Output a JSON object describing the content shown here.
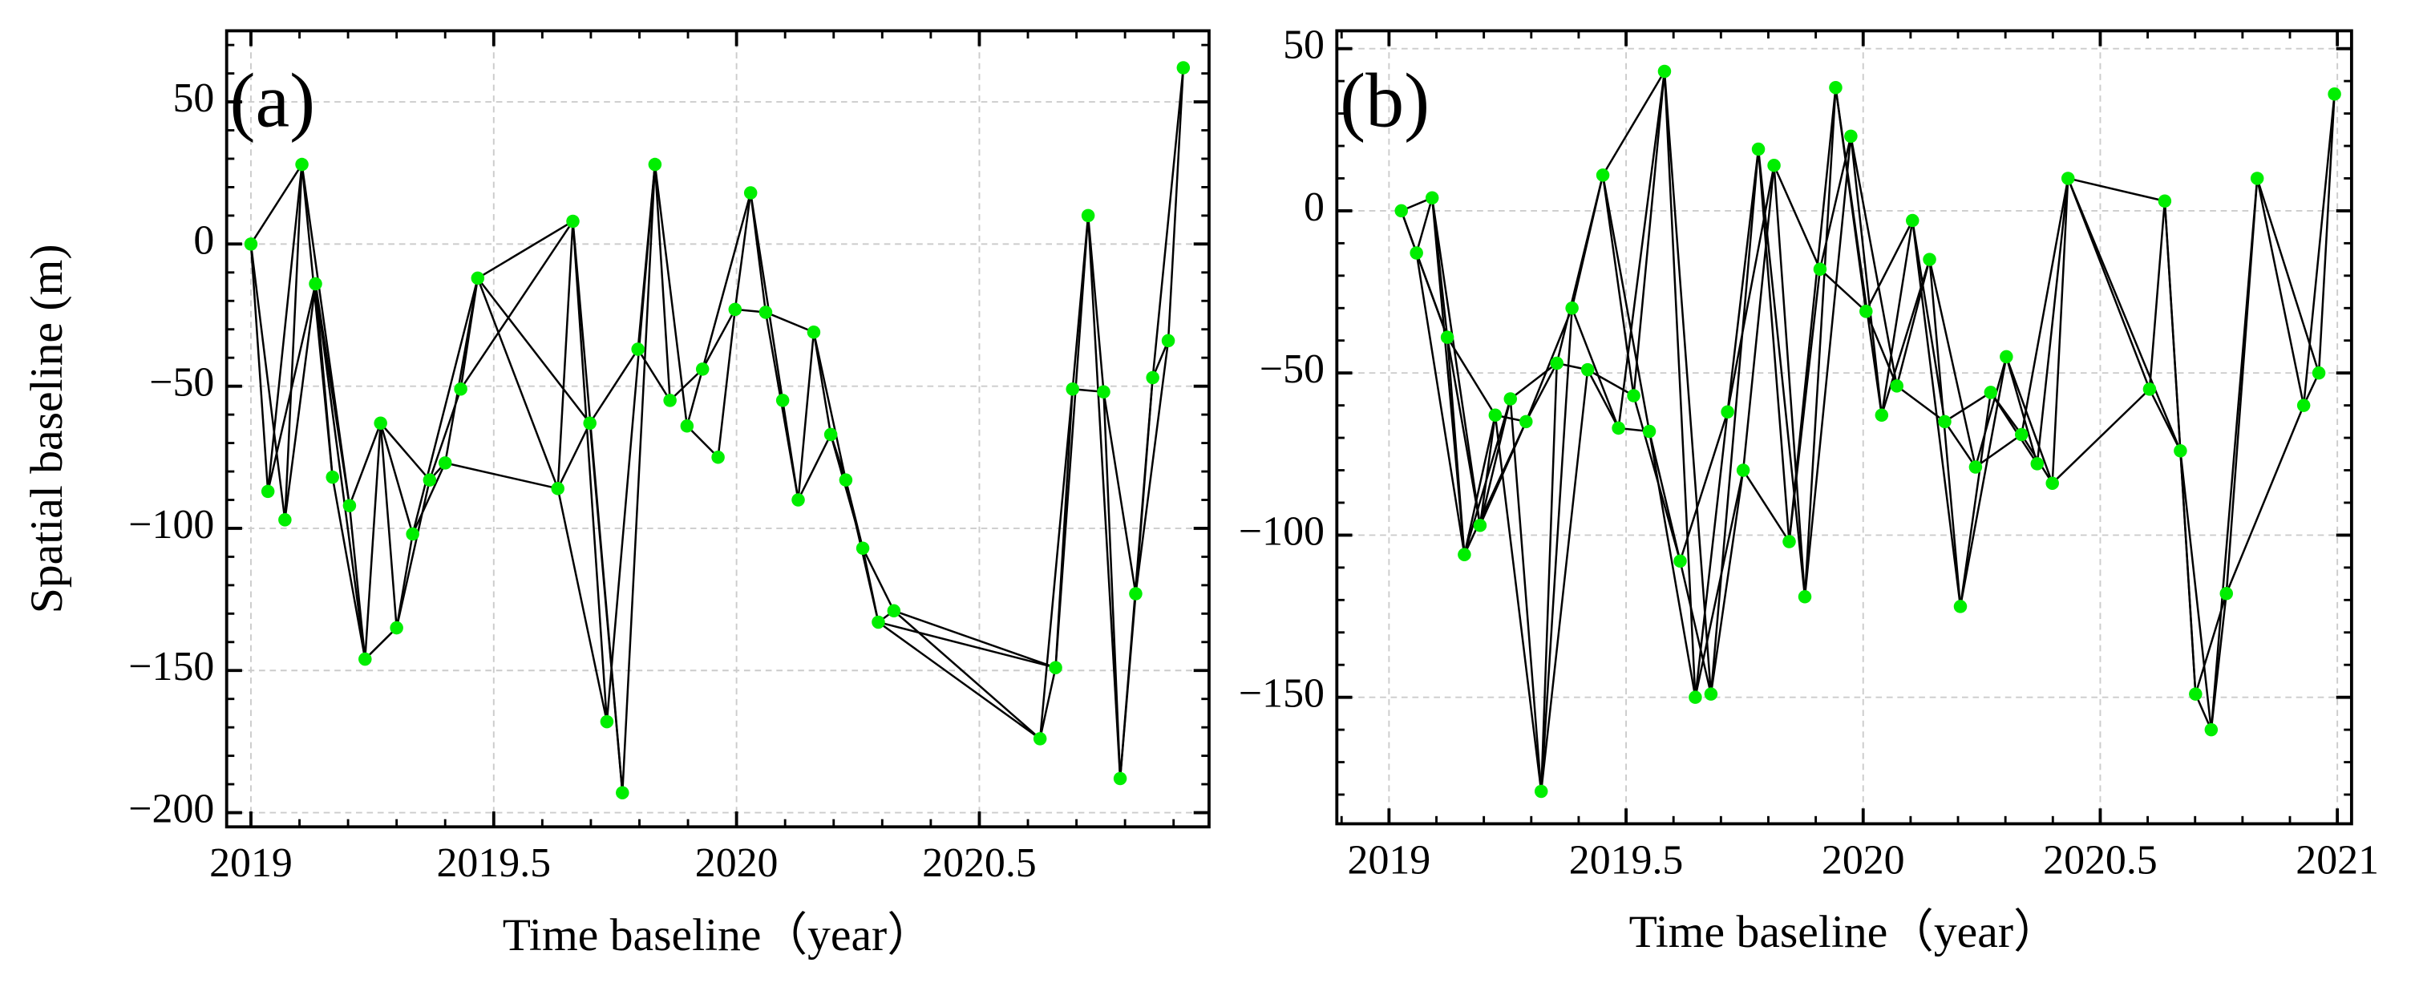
{
  "chart_data": [
    {
      "type": "network",
      "panel_label": "(a)",
      "xlabel": "Time baseline（year）",
      "ylabel": "Spatial baseline (m)",
      "point_color": "#00ee00",
      "edge_color": "#000000",
      "grid": true,
      "xlim": [
        2018.95,
        2020.973
      ],
      "ylim": [
        -205,
        75
      ],
      "xticks": [
        2019,
        2019.5,
        2020,
        2020.5
      ],
      "yticks": [
        {
          "value": -200,
          "label": "−200"
        },
        {
          "value": -150,
          "label": "−150"
        },
        {
          "value": -100,
          "label": "−100"
        },
        {
          "value": -50,
          "label": "−50"
        },
        0,
        50
      ],
      "x": [
        2019.0,
        2019.035,
        2019.07,
        2019.105,
        2019.133,
        2019.168,
        2019.203,
        2019.235,
        2019.267,
        2019.3,
        2019.333,
        2019.368,
        2019.4,
        2019.432,
        2019.467,
        2019.632,
        2019.663,
        2019.698,
        2019.733,
        2019.765,
        2019.797,
        2019.832,
        2019.863,
        2019.898,
        2019.93,
        2019.962,
        2019.997,
        2020.029,
        2020.06,
        2020.095,
        2020.127,
        2020.159,
        2020.194,
        2020.225,
        2020.26,
        2020.292,
        2020.324,
        2020.625,
        2020.657,
        2020.692,
        2020.724,
        2020.756,
        2020.79,
        2020.822,
        2020.857,
        2020.889,
        2020.92
      ],
      "values": [
        0,
        -87,
        -97,
        28,
        -14,
        -82,
        -92,
        -146,
        -63,
        -135,
        -102,
        -83,
        -77,
        -51,
        -12,
        -86,
        8,
        -63,
        -168,
        -193,
        -37,
        28,
        -55,
        -64,
        -44,
        -75,
        -23,
        18,
        -24,
        -55,
        -90,
        -31,
        -67,
        -83,
        -107,
        -133,
        -129,
        -174,
        -149,
        -51,
        10,
        -52,
        -188,
        -123,
        -47,
        -34,
        62
      ],
      "edges": [
        [
          0,
          1
        ],
        [
          0,
          2
        ],
        [
          0,
          3
        ],
        [
          1,
          3
        ],
        [
          1,
          4
        ],
        [
          2,
          3
        ],
        [
          2,
          4
        ],
        [
          3,
          5
        ],
        [
          3,
          6
        ],
        [
          4,
          5
        ],
        [
          4,
          6
        ],
        [
          4,
          7
        ],
        [
          5,
          7
        ],
        [
          6,
          7
        ],
        [
          6,
          8
        ],
        [
          7,
          8
        ],
        [
          7,
          9
        ],
        [
          8,
          9
        ],
        [
          8,
          10
        ],
        [
          9,
          10
        ],
        [
          9,
          11
        ],
        [
          8,
          11
        ],
        [
          10,
          12
        ],
        [
          11,
          12
        ],
        [
          11,
          13
        ],
        [
          12,
          14
        ],
        [
          13,
          14
        ],
        [
          10,
          14
        ],
        [
          14,
          15
        ],
        [
          14,
          16
        ],
        [
          14,
          17
        ],
        [
          13,
          16
        ],
        [
          15,
          16
        ],
        [
          15,
          17
        ],
        [
          15,
          18
        ],
        [
          16,
          18
        ],
        [
          16,
          19
        ],
        [
          17,
          19
        ],
        [
          17,
          20
        ],
        [
          18,
          21
        ],
        [
          19,
          21
        ],
        [
          20,
          21
        ],
        [
          20,
          22
        ],
        [
          21,
          22
        ],
        [
          21,
          23
        ],
        [
          22,
          24
        ],
        [
          23,
          24
        ],
        [
          23,
          25
        ],
        [
          24,
          26
        ],
        [
          25,
          26
        ],
        [
          24,
          27
        ],
        [
          26,
          27
        ],
        [
          26,
          28
        ],
        [
          27,
          28
        ],
        [
          27,
          29
        ],
        [
          28,
          30
        ],
        [
          29,
          30
        ],
        [
          28,
          31
        ],
        [
          30,
          31
        ],
        [
          30,
          32
        ],
        [
          31,
          32
        ],
        [
          31,
          33
        ],
        [
          32,
          33
        ],
        [
          33,
          34
        ],
        [
          32,
          34
        ],
        [
          34,
          35
        ],
        [
          34,
          36
        ],
        [
          33,
          35
        ],
        [
          35,
          36
        ],
        [
          35,
          37
        ],
        [
          36,
          37
        ],
        [
          36,
          38
        ],
        [
          37,
          38
        ],
        [
          37,
          39
        ],
        [
          38,
          39
        ],
        [
          38,
          40
        ],
        [
          39,
          40
        ],
        [
          39,
          41
        ],
        [
          40,
          42
        ],
        [
          41,
          42
        ],
        [
          40,
          41
        ],
        [
          41,
          43
        ],
        [
          42,
          43
        ],
        [
          42,
          44
        ],
        [
          43,
          44
        ],
        [
          43,
          45
        ],
        [
          44,
          45
        ],
        [
          44,
          46
        ],
        [
          45,
          46
        ],
        [
          12,
          15
        ],
        [
          35,
          38
        ]
      ]
    },
    {
      "type": "network",
      "panel_label": "(b)",
      "xlabel": "Time baseline（year）",
      "point_color": "#00ee00",
      "edge_color": "#000000",
      "grid": true,
      "xlim": [
        2018.89,
        2021.03
      ],
      "ylim": [
        -189,
        55.5
      ],
      "xticks": [
        2019,
        2019.5,
        2020,
        2020.5,
        2021
      ],
      "yticks": [
        {
          "value": -150,
          "label": "−150"
        },
        {
          "value": -100,
          "label": "−100"
        },
        {
          "value": -50,
          "label": "−50"
        },
        0,
        50
      ],
      "x": [
        2019.026,
        2019.058,
        2019.091,
        2019.123,
        2019.159,
        2019.192,
        2019.224,
        2019.256,
        2019.289,
        2019.321,
        2019.354,
        2019.386,
        2019.419,
        2019.451,
        2019.484,
        2019.516,
        2019.549,
        2019.581,
        2019.614,
        2019.646,
        2019.679,
        2019.714,
        2019.747,
        2019.779,
        2019.812,
        2019.844,
        2019.877,
        2019.909,
        2019.942,
        2019.974,
        2020.006,
        2020.039,
        2020.071,
        2020.104,
        2020.14,
        2020.172,
        2020.205,
        2020.237,
        2020.269,
        2020.302,
        2020.334,
        2020.367,
        2020.399,
        2020.432,
        2020.604,
        2020.636,
        2020.669,
        2020.701,
        2020.734,
        2020.766,
        2020.831,
        2020.929,
        2020.961,
        2020.994
      ],
      "values": [
        0,
        -13,
        4,
        -39,
        -106,
        -97,
        -63,
        -58,
        -65,
        -179,
        -47,
        -30,
        -49,
        11,
        -67,
        -57,
        -68,
        43,
        -108,
        -150,
        -149,
        -62,
        -80,
        19,
        14,
        -102,
        -119,
        -18,
        38,
        23,
        -31,
        -63,
        -54,
        -3,
        -15,
        -65,
        -122,
        -79,
        -56,
        -45,
        -69,
        -78,
        -84,
        10,
        -55,
        3,
        -74,
        -149,
        -160,
        -118,
        10,
        -60,
        -50,
        36
      ],
      "edges": [
        [
          0,
          1
        ],
        [
          0,
          2
        ],
        [
          0,
          3
        ],
        [
          1,
          2
        ],
        [
          1,
          3
        ],
        [
          1,
          4
        ],
        [
          2,
          3
        ],
        [
          2,
          4
        ],
        [
          2,
          5
        ],
        [
          3,
          4
        ],
        [
          3,
          5
        ],
        [
          3,
          6
        ],
        [
          4,
          6
        ],
        [
          4,
          7
        ],
        [
          5,
          6
        ],
        [
          5,
          7
        ],
        [
          5,
          8
        ],
        [
          6,
          8
        ],
        [
          6,
          9
        ],
        [
          7,
          9
        ],
        [
          7,
          10
        ],
        [
          8,
          10
        ],
        [
          8,
          11
        ],
        [
          9,
          10
        ],
        [
          9,
          11
        ],
        [
          9,
          12
        ],
        [
          10,
          12
        ],
        [
          10,
          13
        ],
        [
          11,
          13
        ],
        [
          11,
          14
        ],
        [
          12,
          14
        ],
        [
          12,
          15
        ],
        [
          13,
          15
        ],
        [
          13,
          16
        ],
        [
          14,
          16
        ],
        [
          14,
          17
        ],
        [
          15,
          17
        ],
        [
          15,
          18
        ],
        [
          16,
          18
        ],
        [
          16,
          19
        ],
        [
          17,
          19
        ],
        [
          17,
          20
        ],
        [
          18,
          20
        ],
        [
          18,
          21
        ],
        [
          19,
          21
        ],
        [
          19,
          22
        ],
        [
          20,
          22
        ],
        [
          20,
          23
        ],
        [
          21,
          23
        ],
        [
          21,
          24
        ],
        [
          22,
          24
        ],
        [
          22,
          25
        ],
        [
          23,
          25
        ],
        [
          23,
          26
        ],
        [
          24,
          26
        ],
        [
          24,
          27
        ],
        [
          25,
          27
        ],
        [
          25,
          28
        ],
        [
          26,
          28
        ],
        [
          26,
          29
        ],
        [
          27,
          29
        ],
        [
          27,
          30
        ],
        [
          28,
          30
        ],
        [
          28,
          31
        ],
        [
          29,
          31
        ],
        [
          29,
          32
        ],
        [
          30,
          32
        ],
        [
          30,
          33
        ],
        [
          31,
          33
        ],
        [
          31,
          34
        ],
        [
          32,
          34
        ],
        [
          32,
          35
        ],
        [
          33,
          35
        ],
        [
          33,
          36
        ],
        [
          34,
          36
        ],
        [
          34,
          37
        ],
        [
          35,
          37
        ],
        [
          35,
          38
        ],
        [
          36,
          38
        ],
        [
          36,
          39
        ],
        [
          37,
          39
        ],
        [
          37,
          40
        ],
        [
          38,
          40
        ],
        [
          38,
          41
        ],
        [
          39,
          41
        ],
        [
          39,
          42
        ],
        [
          40,
          42
        ],
        [
          40,
          43
        ],
        [
          41,
          43
        ],
        [
          42,
          43
        ],
        [
          42,
          44
        ],
        [
          43,
          44
        ],
        [
          43,
          45
        ],
        [
          43,
          46
        ],
        [
          44,
          45
        ],
        [
          44,
          46
        ],
        [
          45,
          46
        ],
        [
          45,
          47
        ],
        [
          46,
          47
        ],
        [
          46,
          48
        ],
        [
          47,
          48
        ],
        [
          47,
          49
        ],
        [
          48,
          49
        ],
        [
          48,
          50
        ],
        [
          49,
          50
        ],
        [
          49,
          51
        ],
        [
          50,
          51
        ],
        [
          50,
          52
        ],
        [
          51,
          52
        ],
        [
          51,
          53
        ],
        [
          52,
          53
        ],
        [
          4,
          8
        ],
        [
          13,
          17
        ]
      ]
    }
  ]
}
